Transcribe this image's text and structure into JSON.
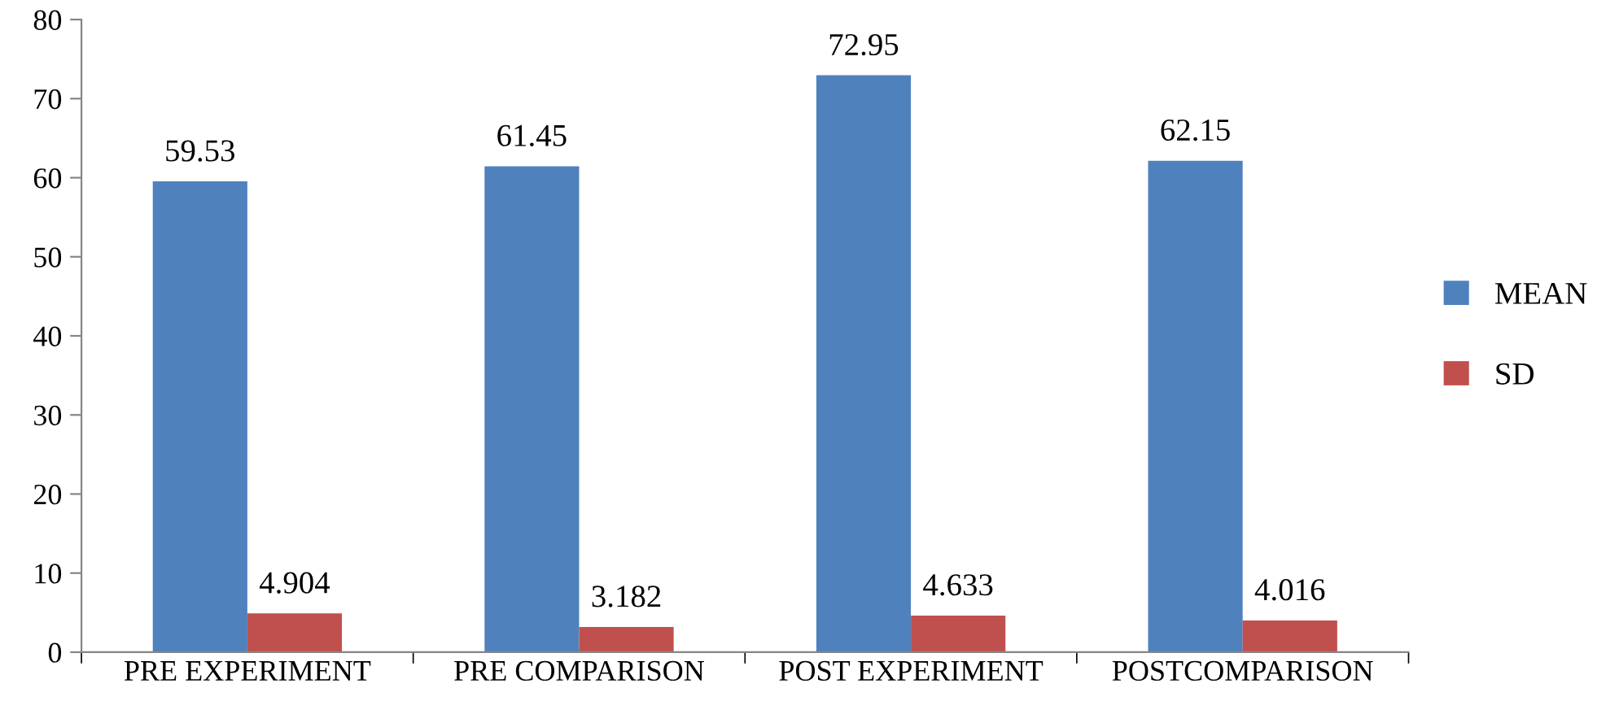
{
  "chart_data": {
    "type": "bar",
    "categories": [
      "PRE EXPERIMENT",
      "PRE COMPARISON",
      "POST EXPERIMENT",
      "POSTCOMPARISON"
    ],
    "series": [
      {
        "name": "MEAN",
        "color": "#4f81bd",
        "values": [
          59.53,
          61.45,
          72.95,
          62.15
        ]
      },
      {
        "name": "SD",
        "color": "#c0504d",
        "values": [
          4.904,
          3.182,
          4.633,
          4.016
        ]
      }
    ],
    "ylim": [
      0,
      80
    ],
    "yticks": [
      0,
      10,
      20,
      30,
      40,
      50,
      60,
      70,
      80
    ],
    "data_labels": true,
    "legend": "right",
    "grid": false
  }
}
